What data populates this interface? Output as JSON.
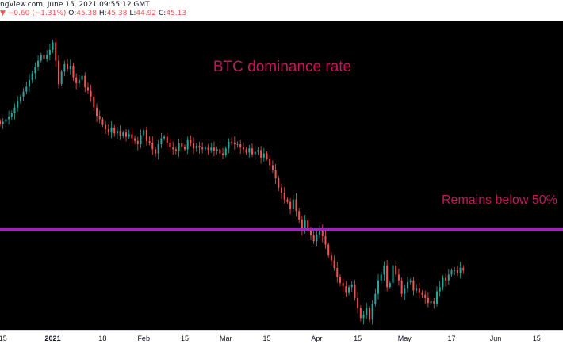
{
  "header": {
    "source_date": "ngView.com, June 15, 2021 09:55:12 GMT",
    "change": "▼ −0.60 (−1.31%)",
    "ohlc": [
      {
        "label": "O:",
        "value": "45.38"
      },
      {
        "label": "H:",
        "value": "45.38"
      },
      {
        "label": "L:",
        "value": "44.92"
      },
      {
        "label": "C:",
        "value": "45.13"
      }
    ]
  },
  "chart_data": {
    "type": "candlestick",
    "title": "BTC dominance rate",
    "annotation": "Remains below 50%",
    "threshold_line": {
      "value": 50,
      "color": "#9c27b0"
    },
    "colors": {
      "up": "#26a69a",
      "down": "#ef5350",
      "background": "#000000",
      "title": "#c2185b"
    },
    "x_ticks": [
      "15",
      "2021",
      "18",
      "Feb",
      "15",
      "Mar",
      "15",
      "Apr",
      "15",
      "May",
      "17",
      "Jun",
      "15"
    ],
    "x_range": [
      "2020-12-14",
      "2021-06-24"
    ],
    "y_range": [
      38,
      75
    ],
    "date_start": "2020-12-14",
    "close": [
      62.6,
      62.9,
      63.2,
      63.5,
      63.9,
      64.6,
      65.3,
      65.9,
      66.5,
      67.1,
      67.9,
      68.7,
      69.5,
      70.2,
      70.9,
      70.4,
      70.9,
      71.5,
      72.4,
      70.2,
      67.4,
      68.9,
      69.8,
      69.2,
      69.6,
      68.2,
      67.5,
      67.9,
      68.4,
      67.0,
      66.6,
      65.9,
      64.6,
      63.6,
      63.2,
      62.5,
      62.0,
      61.6,
      62.2,
      61.5,
      61.8,
      61.2,
      61.6,
      61.1,
      61.4,
      60.9,
      60.6,
      60.2,
      61.3,
      61.9,
      60.6,
      60.4,
      59.6,
      59.1,
      60.2,
      60.9,
      61.1,
      60.4,
      59.8,
      59.6,
      59.4,
      60.3,
      59.9,
      59.6,
      60.7,
      60.3,
      59.7,
      60.0,
      59.8,
      59.6,
      59.8,
      59.5,
      59.8,
      59.4,
      59.6,
      59.1,
      58.9,
      59.7,
      60.5,
      60.4,
      60.2,
      60.2,
      59.8,
      59.6,
      59.2,
      59.7,
      59.0,
      59.3,
      59.5,
      58.6,
      59.1,
      58.5,
      57.7,
      57.1,
      56.1,
      55.0,
      54.4,
      53.6,
      53.3,
      52.4,
      53.6,
      52.2,
      51.2,
      50.0,
      51.1,
      49.9,
      49.3,
      48.6,
      49.4,
      50.1,
      49.2,
      48.2,
      46.9,
      46.3,
      45.4,
      44.3,
      43.6,
      43.2,
      42.4,
      43.1,
      43.4,
      41.8,
      40.6,
      39.4,
      39.8,
      40.6,
      39.2,
      41.1,
      42.3,
      43.9,
      44.6,
      45.7,
      43.1,
      43.6,
      45.7,
      44.6,
      43.9,
      42.3,
      42.9,
      43.7,
      43.9,
      42.7,
      42.9,
      42.4,
      42.2,
      41.8,
      41.2,
      41.4,
      41.1,
      42.6,
      43.1,
      44.2,
      43.9,
      44.6,
      45.1,
      45.1,
      44.8,
      45.4,
      45.1
    ]
  }
}
